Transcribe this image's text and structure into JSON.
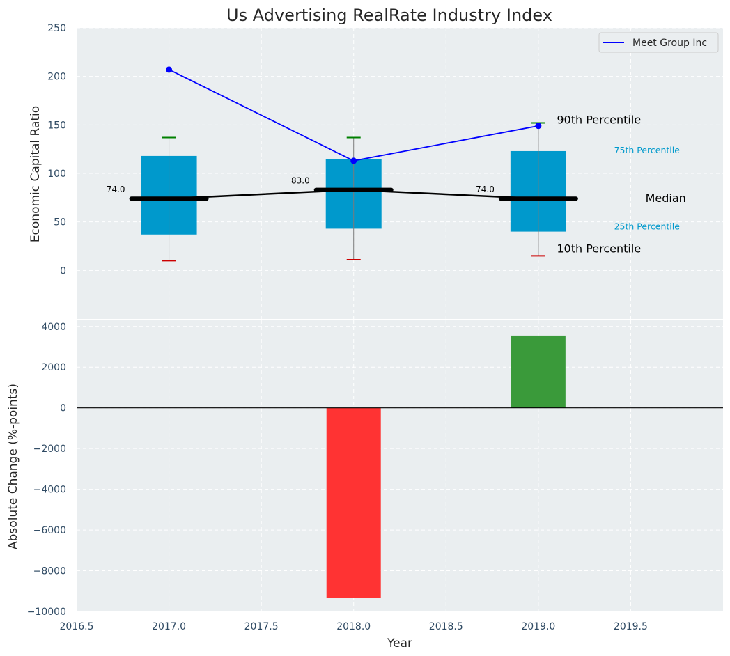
{
  "chart_data": [
    {
      "type": "box",
      "title": "Us Advertising RealRate Industry Index",
      "ylabel": "Economic Capital Ratio",
      "xlim": [
        2016.5,
        2020.0
      ],
      "ylim": [
        -50,
        250
      ],
      "yticks": [
        0,
        50,
        100,
        150,
        200,
        250
      ],
      "grid": true,
      "colors": {
        "box": "#0099cc",
        "median": "#000000",
        "p90": "#008000",
        "p10": "#cc0000",
        "series": "#0000ff",
        "percentile_label": "#0099cc",
        "background": "#eaeef0"
      },
      "boxes": [
        {
          "x": 2017.0,
          "p10": 10,
          "p25": 37,
          "median": 74,
          "p75": 118,
          "p90": 137,
          "median_label": "74.0"
        },
        {
          "x": 2018.0,
          "p10": 11,
          "p25": 43,
          "median": 83,
          "p75": 115,
          "p90": 137,
          "median_label": "83.0"
        },
        {
          "x": 2019.0,
          "p10": 15,
          "p25": 40,
          "median": 74,
          "p75": 123,
          "p90": 152,
          "median_label": "74.0"
        }
      ],
      "series": [
        {
          "name": "Meet Group Inc",
          "x": [
            2017.0,
            2018.0,
            2019.0
          ],
          "values": [
            207,
            113,
            149
          ]
        }
      ],
      "annotations": {
        "p90": "90th Percentile",
        "p75": "75th Percentile",
        "median": "Median",
        "p25": "25th Percentile",
        "p10": "10th Percentile"
      },
      "legend": {
        "placement": "top-right",
        "entries": [
          "Meet Group Inc"
        ]
      }
    },
    {
      "type": "bar",
      "xlabel": "Year",
      "ylabel": "Absolute Change (%-points)",
      "xlim": [
        2016.5,
        2020.0
      ],
      "ylim": [
        -10000,
        4300
      ],
      "yticks": [
        -10000,
        -8000,
        -6000,
        -4000,
        -2000,
        0,
        2000,
        4000
      ],
      "ytick_labels": [
        "−10000",
        "−8000",
        "−6000",
        "−4000",
        "−2000",
        "0",
        "2000",
        "4000"
      ],
      "xticks": [
        2016.5,
        2017.0,
        2017.5,
        2018.0,
        2018.5,
        2019.0,
        2019.5
      ],
      "xtick_labels": [
        "2016.5",
        "2017.0",
        "2017.5",
        "2018.0",
        "2018.5",
        "2019.0",
        "2019.5"
      ],
      "grid": true,
      "bars": [
        {
          "x": 2018.0,
          "value": -9350,
          "color": "#ff3333"
        },
        {
          "x": 2019.0,
          "value": 3550,
          "color": "#3a9a3a"
        }
      ]
    }
  ]
}
